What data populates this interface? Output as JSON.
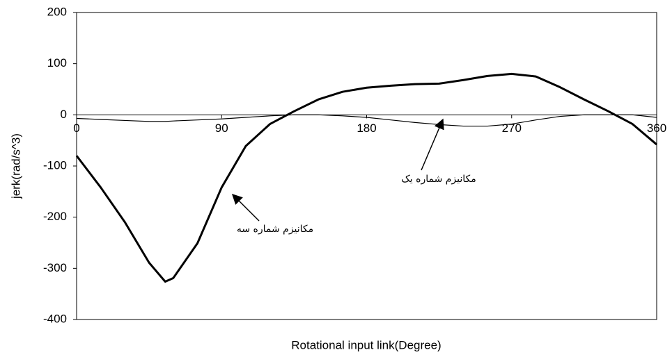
{
  "chart_data": {
    "type": "line",
    "x_label": "Rotational input link(Degree)",
    "y_label": "jerk(rad/s^3)",
    "x": [
      0,
      15,
      30,
      45,
      55,
      60,
      75,
      90,
      105,
      120,
      135,
      150,
      165,
      180,
      195,
      210,
      225,
      240,
      255,
      270,
      285,
      300,
      315,
      330,
      345,
      360
    ],
    "series": [
      {
        "name": "مکانیزم شماره سه",
        "color": "#000000",
        "width": 3,
        "values": [
          -80,
          -142,
          -210,
          -289,
          -326,
          -319,
          -251,
          -142,
          -61,
          -18,
          7,
          30,
          45,
          53,
          57,
          60,
          61,
          68,
          76,
          80,
          75,
          54,
          30,
          7,
          -18,
          -58
        ]
      },
      {
        "name": "مکانیزم شماره یک",
        "color": "#000000",
        "width": 1.2,
        "values": [
          -7,
          -9,
          -11,
          -13,
          -13,
          -12,
          -10,
          -8,
          -5,
          -2,
          0,
          0,
          -2,
          -5,
          -10,
          -15,
          -19,
          -22,
          -22,
          -18,
          -10,
          -3,
          0,
          0,
          0,
          -5
        ]
      }
    ],
    "xlim": [
      0,
      360
    ],
    "xticks": [
      0,
      90,
      180,
      270,
      360
    ],
    "ylim": [
      -400,
      200
    ],
    "yticks": [
      200,
      100,
      0,
      -100,
      -200,
      -300,
      -400
    ]
  }
}
